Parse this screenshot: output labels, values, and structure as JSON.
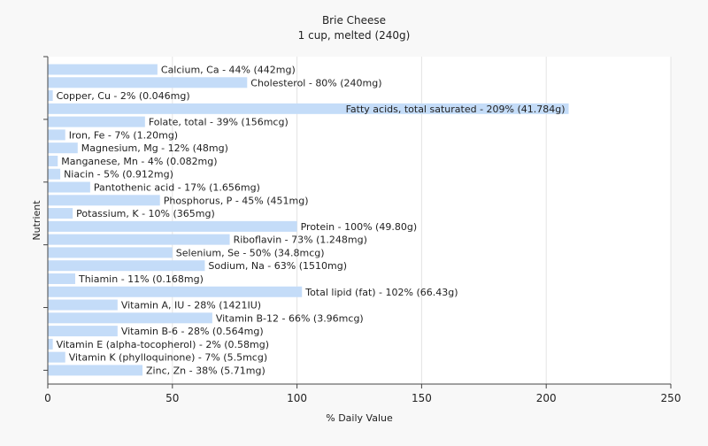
{
  "chart_data": {
    "type": "bar",
    "orientation": "horizontal",
    "title": "Brie Cheese",
    "subtitle": "1 cup, melted (240g)",
    "xlabel": "% Daily Value",
    "ylabel": "Nutrient",
    "xlim": [
      0,
      250
    ],
    "xticks": [
      0,
      50,
      100,
      150,
      200,
      250
    ],
    "grid": "vertical",
    "bar_color": "#c4dcf8",
    "categories": [
      "Calcium, Ca",
      "Cholesterol",
      "Copper, Cu",
      "Fatty acids, total saturated",
      "Folate, total",
      "Iron, Fe",
      "Magnesium, Mg",
      "Manganese, Mn",
      "Niacin",
      "Pantothenic acid",
      "Phosphorus, P",
      "Potassium, K",
      "Protein",
      "Riboflavin",
      "Selenium, Se",
      "Sodium, Na",
      "Thiamin",
      "Total lipid (fat)",
      "Vitamin A, IU",
      "Vitamin B-12",
      "Vitamin B-6",
      "Vitamin E (alpha-tocopherol)",
      "Vitamin K (phylloquinone)",
      "Zinc, Zn"
    ],
    "values": [
      44,
      80,
      2,
      209,
      39,
      7,
      12,
      4,
      5,
      17,
      45,
      10,
      100,
      73,
      50,
      63,
      11,
      102,
      28,
      66,
      28,
      2,
      7,
      38
    ],
    "labels": [
      "Calcium, Ca - 44% (442mg)",
      "Cholesterol - 80% (240mg)",
      "Copper, Cu - 2% (0.046mg)",
      "Fatty acids, total saturated - 209% (41.784g)",
      "Folate, total - 39% (156mcg)",
      "Iron, Fe - 7% (1.20mg)",
      "Magnesium, Mg - 12% (48mg)",
      "Manganese, Mn - 4% (0.082mg)",
      "Niacin - 5% (0.912mg)",
      "Pantothenic acid - 17% (1.656mg)",
      "Phosphorus, P - 45% (451mg)",
      "Potassium, K - 10% (365mg)",
      "Protein - 100% (49.80g)",
      "Riboflavin - 73% (1.248mg)",
      "Selenium, Se - 50% (34.8mcg)",
      "Sodium, Na - 63% (1510mg)",
      "Thiamin - 11% (0.168mg)",
      "Total lipid (fat) - 102% (66.43g)",
      "Vitamin A, IU - 28% (1421IU)",
      "Vitamin B-12 - 66% (3.96mcg)",
      "Vitamin B-6 - 28% (0.564mg)",
      "Vitamin E (alpha-tocopherol) - 2% (0.58mg)",
      "Vitamin K (phylloquinone) - 7% (5.5mcg)",
      "Zinc, Zn - 38% (5.71mg)"
    ]
  }
}
